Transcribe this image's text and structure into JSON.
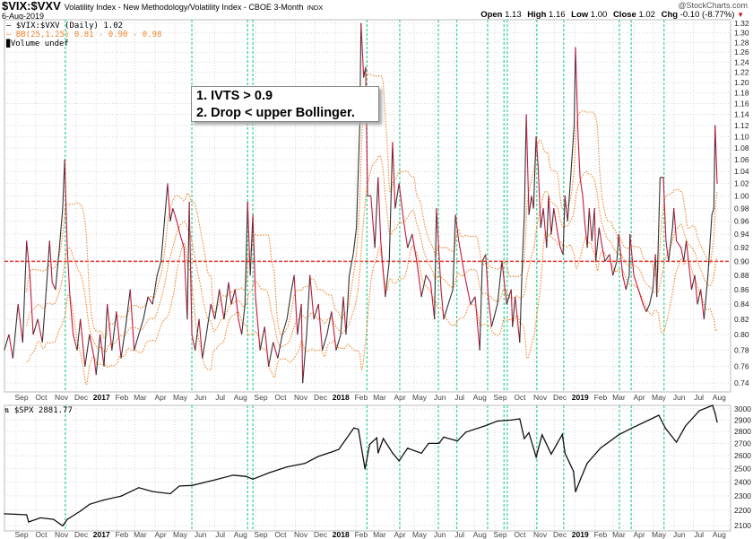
{
  "header": {
    "symbol": "$VIX:$VXV",
    "description": "Volatility Index - New Methodology/Volatility Index - CBOE 3-Month",
    "exchange": "INDX",
    "date": "6-Aug-2019",
    "brand": "@StockCharts.com",
    "open_label": "Open",
    "open": "1.13",
    "high_label": "High",
    "high": "1.16",
    "low_label": "Low",
    "low": "1.00",
    "close_label": "Close",
    "close": "1.02",
    "chg_label": "Chg",
    "chg": "-0.10 (-8.77%)",
    "chg_icon": "down-triangle-icon"
  },
  "legend": {
    "series": "— $VIX:$VXV (Daily) 1.02",
    "bb": "— BB(25,1.25) 0.81 - 0.90 - 0.98",
    "volume": "Volume undef",
    "spx": "$SPX 2881.77"
  },
  "annotation": {
    "line1": "1. IVTS > 0.9",
    "line2": "2. Drop < upper Bollinger."
  },
  "colors": {
    "up": "#333333",
    "down": "#c8163c",
    "bb": "#f0842a",
    "threshold": "#e8302a",
    "signal": "#3fd69c",
    "grid": "#d8d8d8"
  },
  "chart_data": [
    {
      "type": "line",
      "title": "$VIX:$VXV",
      "scale": "log",
      "ylim": [
        0.735,
        1.33
      ],
      "yticks": [
        0.74,
        0.76,
        0.78,
        0.8,
        0.82,
        0.84,
        0.86,
        0.88,
        0.9,
        0.92,
        0.94,
        0.96,
        0.98,
        1.0,
        1.02,
        1.04,
        1.06,
        1.08,
        1.1,
        1.12,
        1.14,
        1.16,
        1.18,
        1.2,
        1.22,
        1.24,
        1.26,
        1.28,
        1.3,
        1.32
      ],
      "threshold": 0.9,
      "bollinger": {
        "period": 25,
        "k": 1.25
      },
      "x_unit": "days",
      "points": [
        [
          -18,
          0.78
        ],
        [
          -11,
          0.8
        ],
        [
          -5,
          0.77
        ],
        [
          3,
          0.84
        ],
        [
          10,
          0.79
        ],
        [
          16,
          0.93
        ],
        [
          21,
          0.88
        ],
        [
          26,
          0.8
        ],
        [
          33,
          0.82
        ],
        [
          40,
          0.79
        ],
        [
          46,
          0.86
        ],
        [
          51,
          0.93
        ],
        [
          55,
          0.87
        ],
        [
          60,
          0.86
        ],
        [
          66,
          0.92
        ],
        [
          71,
          0.98
        ],
        [
          74,
          1.06
        ],
        [
          78,
          0.92
        ],
        [
          82,
          0.85
        ],
        [
          87,
          0.8
        ],
        [
          93,
          0.78
        ],
        [
          98,
          0.82
        ],
        [
          105,
          0.76
        ],
        [
          112,
          0.8
        ],
        [
          119,
          0.77
        ],
        [
          122,
          0.75
        ],
        [
          128,
          0.8
        ],
        [
          134,
          0.76
        ],
        [
          139,
          0.84
        ],
        [
          146,
          0.78
        ],
        [
          153,
          0.83
        ],
        [
          160,
          0.77
        ],
        [
          167,
          0.81
        ],
        [
          174,
          0.86
        ],
        [
          180,
          0.78
        ],
        [
          187,
          0.8
        ],
        [
          194,
          0.82
        ],
        [
          201,
          0.85
        ],
        [
          208,
          0.84
        ],
        [
          215,
          0.88
        ],
        [
          221,
          0.9
        ],
        [
          227,
          0.97
        ],
        [
          231,
          1.02
        ],
        [
          235,
          0.96
        ],
        [
          239,
          0.98
        ],
        [
          245,
          0.96
        ],
        [
          250,
          0.94
        ],
        [
          256,
          0.92
        ],
        [
          261,
          0.82
        ],
        [
          264,
          0.99
        ],
        [
          268,
          0.8
        ],
        [
          273,
          0.78
        ],
        [
          279,
          0.82
        ],
        [
          284,
          0.77
        ],
        [
          290,
          0.8
        ],
        [
          297,
          0.84
        ],
        [
          303,
          0.82
        ],
        [
          310,
          0.86
        ],
        [
          317,
          0.82
        ],
        [
          324,
          0.87
        ],
        [
          328,
          0.84
        ],
        [
          334,
          0.86
        ],
        [
          339,
          0.82
        ],
        [
          344,
          0.8
        ],
        [
          349,
          0.84
        ],
        [
          353,
          0.99
        ],
        [
          357,
          0.88
        ],
        [
          361,
          0.97
        ],
        [
          365,
          0.85
        ],
        [
          372,
          0.78
        ],
        [
          379,
          0.81
        ],
        [
          385,
          0.76
        ],
        [
          392,
          0.79
        ],
        [
          399,
          0.77
        ],
        [
          406,
          0.8
        ],
        [
          413,
          0.82
        ],
        [
          420,
          0.86
        ],
        [
          424,
          0.88
        ],
        [
          429,
          0.8
        ],
        [
          435,
          0.84
        ],
        [
          437,
          0.74
        ],
        [
          443,
          0.8
        ],
        [
          448,
          0.88
        ],
        [
          454,
          0.82
        ],
        [
          461,
          0.84
        ],
        [
          467,
          0.78
        ],
        [
          474,
          0.8
        ],
        [
          481,
          0.83
        ],
        [
          488,
          0.78
        ],
        [
          495,
          0.8
        ],
        [
          499,
          0.85
        ],
        [
          503,
          0.8
        ],
        [
          508,
          0.88
        ],
        [
          514,
          0.91
        ],
        [
          519,
          0.95
        ],
        [
          524,
          1.12
        ],
        [
          526,
          1.32
        ],
        [
          530,
          1.21
        ],
        [
          533,
          1.23
        ],
        [
          536,
          1.0
        ],
        [
          541,
          1.0
        ],
        [
          547,
          0.92
        ],
        [
          552,
          1.03
        ],
        [
          556,
          0.93
        ],
        [
          563,
          0.85
        ],
        [
          569,
          0.9
        ],
        [
          571,
          0.97
        ],
        [
          574,
          1.09
        ],
        [
          578,
          0.98
        ],
        [
          584,
          1.02
        ],
        [
          591,
          0.96
        ],
        [
          597,
          0.92
        ],
        [
          604,
          0.94
        ],
        [
          611,
          0.9
        ],
        [
          618,
          0.85
        ],
        [
          625,
          0.88
        ],
        [
          632,
          0.87
        ],
        [
          638,
          0.82
        ],
        [
          641,
          0.98
        ],
        [
          648,
          0.86
        ],
        [
          652,
          0.82
        ],
        [
          659,
          0.84
        ],
        [
          666,
          0.86
        ],
        [
          670,
          0.97
        ],
        [
          675,
          0.93
        ],
        [
          684,
          0.88
        ],
        [
          693,
          0.84
        ],
        [
          700,
          0.85
        ],
        [
          707,
          0.78
        ],
        [
          711,
          0.9
        ],
        [
          716,
          0.91
        ],
        [
          720,
          0.85
        ],
        [
          725,
          0.81
        ],
        [
          734,
          0.84
        ],
        [
          741,
          0.9
        ],
        [
          748,
          0.84
        ],
        [
          755,
          0.86
        ],
        [
          757,
          0.81
        ],
        [
          761,
          0.85
        ],
        [
          768,
          0.79
        ],
        [
          772,
          0.9
        ],
        [
          775,
          0.97
        ],
        [
          778,
          1.14
        ],
        [
          782,
          0.97
        ],
        [
          786,
          1.0
        ],
        [
          789,
          0.98
        ],
        [
          793,
          1.1
        ],
        [
          796,
          1.05
        ],
        [
          800,
          0.95
        ],
        [
          804,
          0.98
        ],
        [
          809,
          0.92
        ],
        [
          812,
          1.0
        ],
        [
          816,
          0.94
        ],
        [
          820,
          0.98
        ],
        [
          826,
          0.94
        ],
        [
          830,
          0.92
        ],
        [
          834,
          0.91
        ],
        [
          837,
          1.0
        ],
        [
          841,
          0.96
        ],
        [
          845,
          1.02
        ],
        [
          851,
          1.12
        ],
        [
          853,
          1.27
        ],
        [
          857,
          1.1
        ],
        [
          860,
          1.03
        ],
        [
          864,
          1.0
        ],
        [
          867,
          0.96
        ],
        [
          871,
          0.92
        ],
        [
          874,
          0.98
        ],
        [
          878,
          0.93
        ],
        [
          882,
          0.98
        ],
        [
          884,
          0.9
        ],
        [
          889,
          0.95
        ],
        [
          894,
          0.92
        ],
        [
          898,
          0.9
        ],
        [
          905,
          0.91
        ],
        [
          910,
          0.88
        ],
        [
          916,
          0.9
        ],
        [
          919,
          0.94
        ],
        [
          925,
          0.88
        ],
        [
          930,
          0.86
        ],
        [
          935,
          0.88
        ],
        [
          936,
          0.94
        ],
        [
          942,
          0.88
        ],
        [
          949,
          0.86
        ],
        [
          956,
          0.84
        ],
        [
          961,
          0.83
        ],
        [
          966,
          0.84
        ],
        [
          971,
          0.86
        ],
        [
          975,
          0.91
        ],
        [
          977,
          0.85
        ],
        [
          982,
          1.03
        ],
        [
          987,
          1.03
        ],
        [
          991,
          0.93
        ],
        [
          995,
          0.9
        ],
        [
          1001,
          0.95
        ],
        [
          1003,
          0.98
        ],
        [
          1007,
          0.93
        ],
        [
          1014,
          0.92
        ],
        [
          1018,
          0.9
        ],
        [
          1022,
          0.93
        ],
        [
          1030,
          0.86
        ],
        [
          1035,
          0.88
        ],
        [
          1039,
          0.84
        ],
        [
          1044,
          0.86
        ],
        [
          1049,
          0.82
        ],
        [
          1055,
          0.88
        ],
        [
          1061,
          0.97
        ],
        [
          1064,
          0.98
        ],
        [
          1066,
          1.12
        ],
        [
          1069,
          1.02
        ]
      ]
    },
    {
      "type": "line",
      "title": "$SPX",
      "scale": "log",
      "ylim": [
        2060,
        3060
      ],
      "yticks": [
        2100,
        2200,
        2300,
        2400,
        2500,
        2600,
        2700,
        2800,
        2900,
        3000
      ],
      "x_unit": "days",
      "points": [
        [
          -18,
          2177
        ],
        [
          16,
          2170
        ],
        [
          19,
          2123
        ],
        [
          37,
          2150
        ],
        [
          57,
          2140
        ],
        [
          71,
          2098
        ],
        [
          78,
          2140
        ],
        [
          98,
          2195
        ],
        [
          112,
          2241
        ],
        [
          133,
          2270
        ],
        [
          160,
          2298
        ],
        [
          187,
          2358
        ],
        [
          208,
          2330
        ],
        [
          235,
          2315
        ],
        [
          249,
          2370
        ],
        [
          268,
          2374
        ],
        [
          303,
          2415
        ],
        [
          331,
          2450
        ],
        [
          351,
          2440
        ],
        [
          361,
          2420
        ],
        [
          385,
          2466
        ],
        [
          413,
          2513
        ],
        [
          440,
          2539
        ],
        [
          461,
          2595
        ],
        [
          481,
          2630
        ],
        [
          492,
          2651
        ],
        [
          515,
          2830
        ],
        [
          522,
          2820
        ],
        [
          532,
          2496
        ],
        [
          539,
          2691
        ],
        [
          550,
          2746
        ],
        [
          552,
          2622
        ],
        [
          560,
          2740
        ],
        [
          574,
          2622
        ],
        [
          584,
          2560
        ],
        [
          597,
          2660
        ],
        [
          618,
          2620
        ],
        [
          629,
          2700
        ],
        [
          645,
          2700
        ],
        [
          652,
          2752
        ],
        [
          673,
          2720
        ],
        [
          686,
          2795
        ],
        [
          714,
          2847
        ],
        [
          734,
          2891
        ],
        [
          755,
          2900
        ],
        [
          768,
          2911
        ],
        [
          775,
          2740
        ],
        [
          782,
          2790
        ],
        [
          793,
          2590
        ],
        [
          802,
          2772
        ],
        [
          816,
          2613
        ],
        [
          833,
          2776
        ],
        [
          837,
          2620
        ],
        [
          850,
          2478
        ],
        [
          853,
          2328
        ],
        [
          861,
          2424
        ],
        [
          871,
          2541
        ],
        [
          891,
          2661
        ],
        [
          919,
          2772
        ],
        [
          939,
          2830
        ],
        [
          966,
          2903
        ],
        [
          980,
          2943
        ],
        [
          990,
          2830
        ],
        [
          1007,
          2710
        ],
        [
          1021,
          2850
        ],
        [
          1042,
          2984
        ],
        [
          1062,
          3033
        ],
        [
          1066,
          2960
        ],
        [
          1069,
          2882
        ]
      ]
    }
  ],
  "x_axis": {
    "labels": [
      "Sep",
      "Oct",
      "Nov",
      "Dec",
      "2017",
      "Feb",
      "Mar",
      "Apr",
      "May",
      "Jun",
      "Jul",
      "Aug",
      "Sep",
      "Oct",
      "Nov",
      "Dec",
      "2018",
      "Feb",
      "Mar",
      "Apr",
      "May",
      "Jun",
      "Jul",
      "Aug",
      "Sep",
      "Oct",
      "Nov",
      "Dec",
      "2019",
      "Feb",
      "Mar",
      "Apr",
      "May",
      "Jun",
      "Jul",
      "Aug"
    ],
    "signal_days": [
      75,
      268,
      353,
      361,
      535,
      585,
      644,
      672,
      719,
      744,
      749,
      794,
      835,
      920,
      938,
      988
    ]
  }
}
